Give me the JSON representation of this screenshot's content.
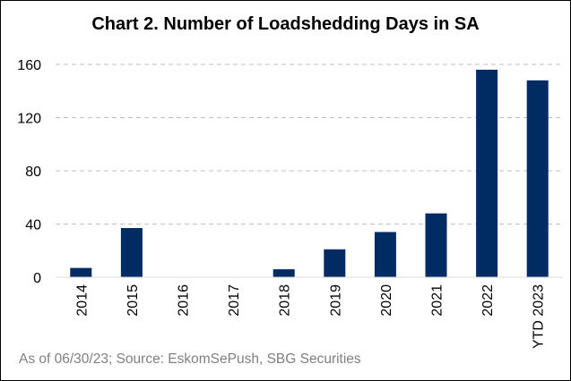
{
  "chart_data": {
    "type": "bar",
    "title": "Chart 2. Number of Loadshedding Days in SA",
    "categories": [
      "2014",
      "2015",
      "2016",
      "2017",
      "2018",
      "2019",
      "2020",
      "2021",
      "2022",
      "YTD 2023"
    ],
    "values": [
      7,
      37,
      0,
      0,
      6,
      21,
      34,
      48,
      156,
      148
    ],
    "xlabel": "",
    "ylabel": "",
    "ylim": [
      0,
      160
    ],
    "yticks": [
      0,
      40,
      80,
      120,
      160
    ],
    "grid": "horizontal dashed",
    "legend": "none",
    "bar_color": "#002B63",
    "footnote": "As of 06/30/23; Source: EskomSePush, SBG Securities"
  }
}
